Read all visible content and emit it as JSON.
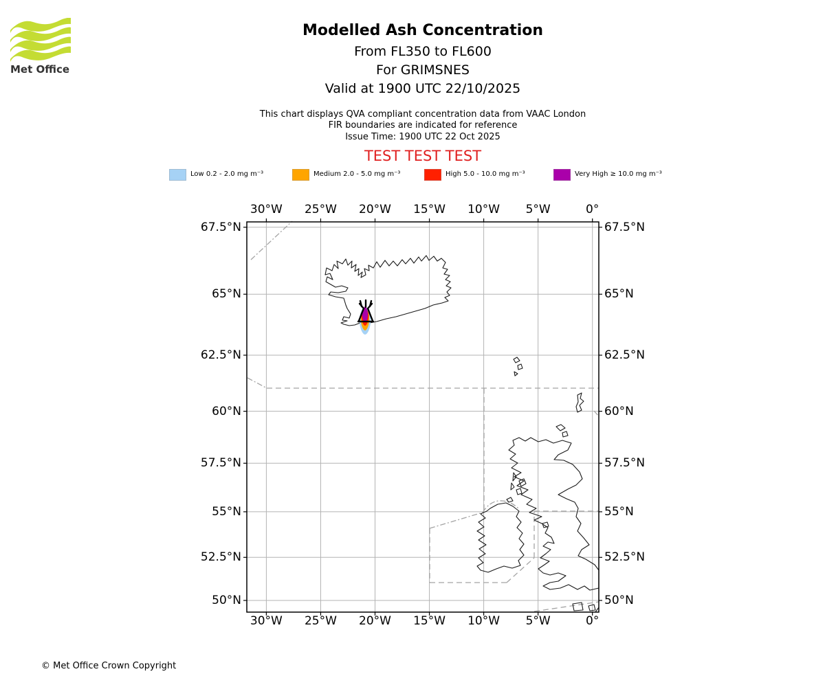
{
  "header": {
    "logo_text": "Met Office",
    "title": "Modelled Ash Concentration",
    "subtitle_lines": [
      "From FL350 to FL600",
      "For GRIMSNES",
      "Valid at 1900 UTC 22/10/2025"
    ],
    "info_lines": [
      "This chart displays QVA compliant concentration data from VAAC London",
      "FIR boundaries are indicated for reference",
      "Issue Time: 1900 UTC 22 Oct 2025"
    ],
    "test_banner": "TEST TEST TEST",
    "test_banner_color": "#E02020"
  },
  "legend": {
    "items": [
      {
        "name": "Low",
        "label": "Low 0.2 - 2.0 mg m⁻³",
        "color": "#A6D2F5"
      },
      {
        "name": "Medium",
        "label": "Medium 2.0 - 5.0 mg m⁻³",
        "color": "#FFA500"
      },
      {
        "name": "High",
        "label": "High 5.0 - 10.0 mg m⁻³",
        "color": "#FF2000"
      },
      {
        "name": "Very High",
        "label": "Very High ≥ 10.0 mg m⁻³",
        "color": "#AA00AA"
      }
    ]
  },
  "footer": {
    "copyright": "© Met Office Crown Copyright"
  },
  "chart_data": {
    "type": "heatmap",
    "subtype": "geographic-ash-concentration-contours",
    "title": "Modelled Ash Concentration",
    "layer": "From FL350 to FL600",
    "volcano": "GRIMSNES",
    "valid_time": "1900 UTC 22/10/2025",
    "issue_time": "1900 UTC 22 Oct 2025",
    "data_source": "VAAC London",
    "projection": "Mercator",
    "lon_ticks": [
      {
        "deg": -30,
        "label": "30°W"
      },
      {
        "deg": -25,
        "label": "25°W"
      },
      {
        "deg": -20,
        "label": "20°W"
      },
      {
        "deg": -15,
        "label": "15°W"
      },
      {
        "deg": -10,
        "label": "10°W"
      },
      {
        "deg": -5,
        "label": "5°W"
      },
      {
        "deg": 0,
        "label": "0°"
      }
    ],
    "lat_ticks": [
      {
        "deg": 67.5,
        "label": "67.5°N"
      },
      {
        "deg": 65,
        "label": "65°N"
      },
      {
        "deg": 62.5,
        "label": "62.5°N"
      },
      {
        "deg": 60,
        "label": "60°N"
      },
      {
        "deg": 57.5,
        "label": "57.5°N"
      },
      {
        "deg": 55,
        "label": "55°N"
      },
      {
        "deg": 52.5,
        "label": "52.5°N"
      },
      {
        "deg": 50,
        "label": "50°N"
      }
    ],
    "lon_range": [
      -31.8,
      0.6
    ],
    "lat_range": [
      49.3,
      67.7
    ],
    "grid": true,
    "legend_position": "above-map",
    "concentration_levels": [
      {
        "level": "Low",
        "range_mg_m3": "0.2 - 2.0",
        "color": "#A6D2F5"
      },
      {
        "level": "Medium",
        "range_mg_m3": "2.0 - 5.0",
        "color": "#FFA500"
      },
      {
        "level": "High",
        "range_mg_m3": "5.0 - 10.0",
        "color": "#FF2000"
      },
      {
        "level": "Very High",
        "range_mg_m3": "≥ 10.0",
        "color": "#AA00AA"
      }
    ],
    "source_marker": {
      "name": "GRIMSNES",
      "lon": -20.9,
      "lat": 64.0,
      "symbol": "volcano"
    },
    "plume_extent": {
      "lon": -20.9,
      "lat_north": 64.05,
      "lat_south": 63.45,
      "max_level": "Very High"
    },
    "map_features": [
      "Iceland",
      "Faroe Islands",
      "Shetland",
      "Orkney",
      "Great Britain",
      "Ireland",
      "FIR boundaries (dashed)"
    ]
  }
}
